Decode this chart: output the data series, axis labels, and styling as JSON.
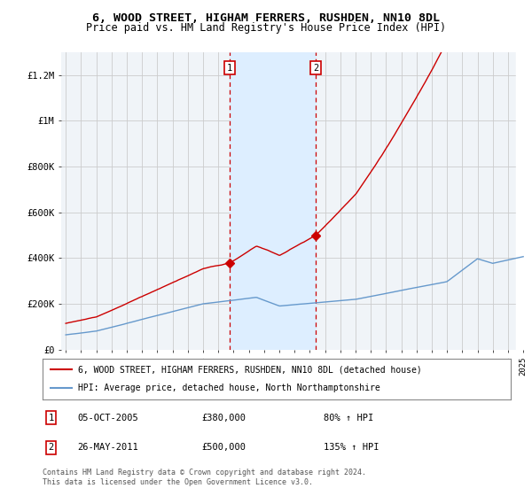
{
  "title_line1": "6, WOOD STREET, HIGHAM FERRERS, RUSHDEN, NN10 8DL",
  "title_line2": "Price paid vs. HM Land Registry's House Price Index (HPI)",
  "ylim": [
    0,
    1300000
  ],
  "yticks": [
    0,
    200000,
    400000,
    600000,
    800000,
    1000000,
    1200000
  ],
  "ytick_labels": [
    "£0",
    "£200K",
    "£400K",
    "£600K",
    "£800K",
    "£1M",
    "£1.2M"
  ],
  "year_start": 1995,
  "year_end": 2025,
  "sale1_date": 2005.76,
  "sale1_price": 380000,
  "sale1_label": "1",
  "sale1_date_str": "05-OCT-2005",
  "sale1_pct": "80%",
  "sale2_date": 2011.39,
  "sale2_price": 500000,
  "sale2_label": "2",
  "sale2_date_str": "26-MAY-2011",
  "sale2_pct": "135%",
  "hpi_color": "#6699cc",
  "price_color": "#cc0000",
  "shade_color": "#ddeeff",
  "legend_line1": "6, WOOD STREET, HIGHAM FERRERS, RUSHDEN, NN10 8DL (detached house)",
  "legend_line2": "HPI: Average price, detached house, North Northamptonshire",
  "note": "Contains HM Land Registry data © Crown copyright and database right 2024.\nThis data is licensed under the Open Government Licence v3.0.",
  "background_color": "#f0f4f8"
}
